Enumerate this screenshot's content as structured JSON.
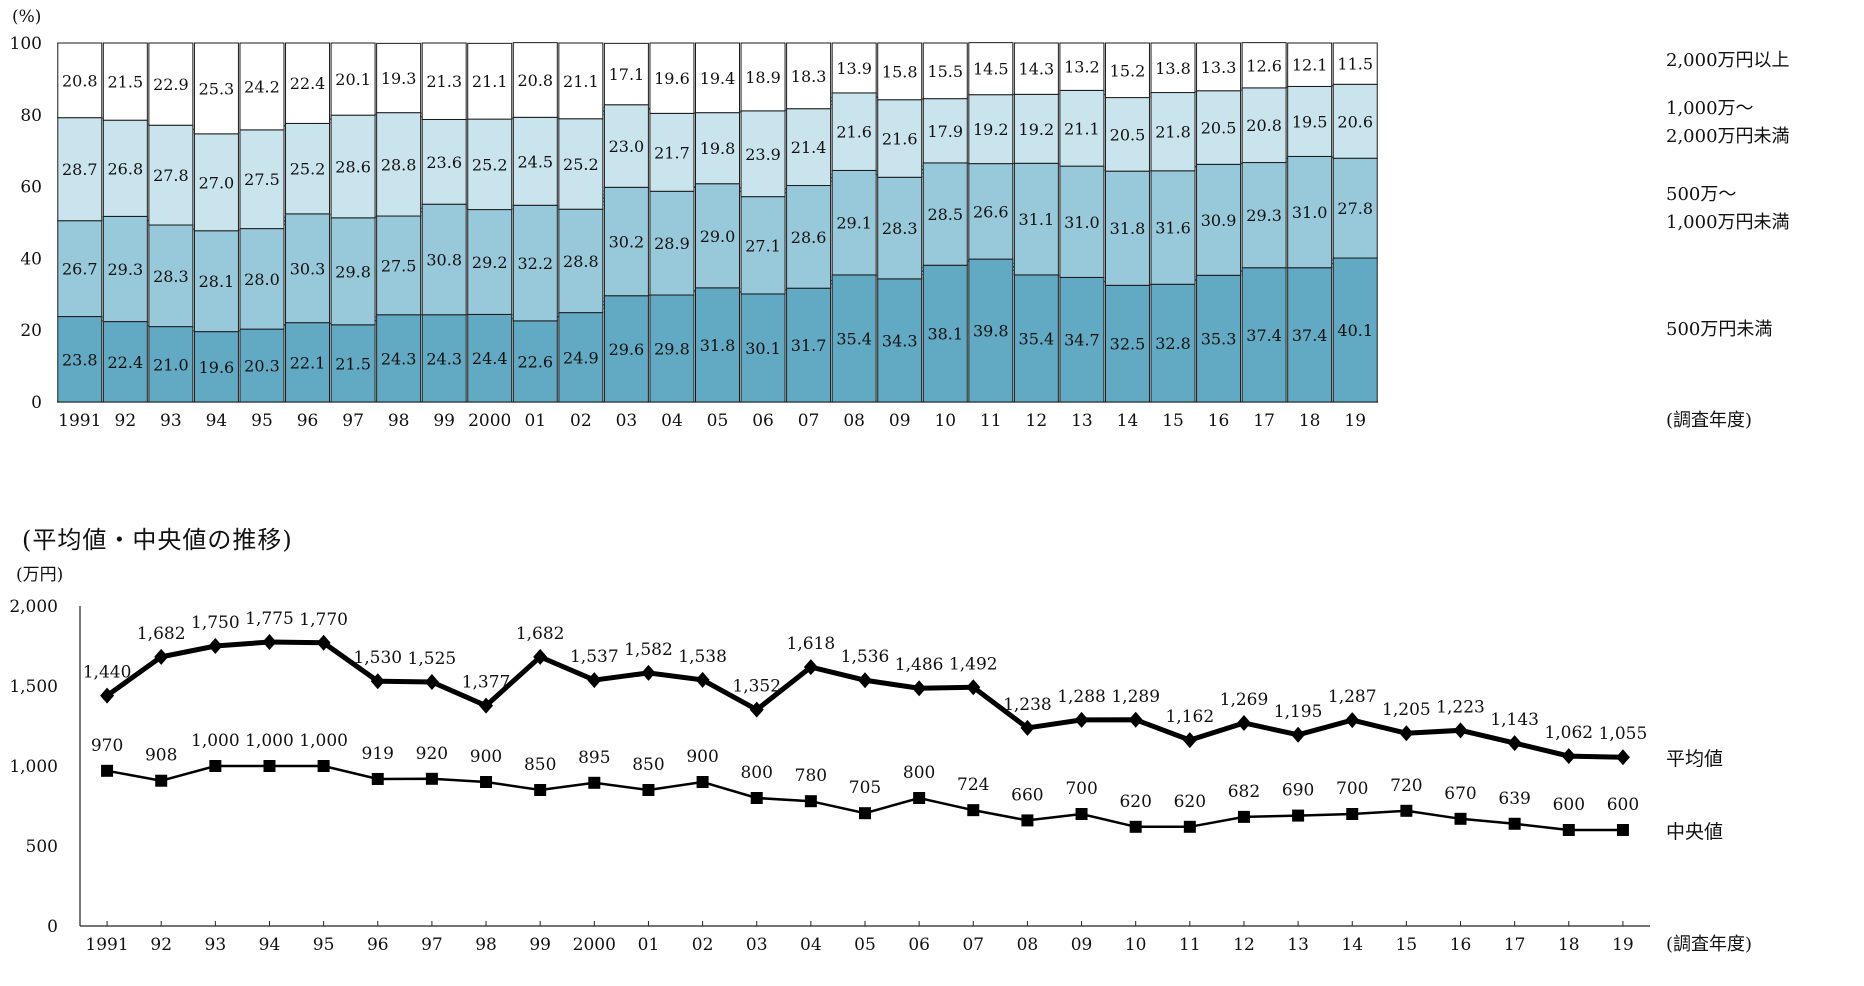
{
  "chart_data": [
    {
      "type": "bar",
      "stacked": true,
      "ylabel": "(%)",
      "xlabel": "(調査年度)",
      "ylim": [
        0,
        100
      ],
      "yticks": [
        0,
        20,
        40,
        60,
        80,
        100
      ],
      "categories": [
        "1991",
        "92",
        "93",
        "94",
        "95",
        "96",
        "97",
        "98",
        "99",
        "2000",
        "01",
        "02",
        "03",
        "04",
        "05",
        "06",
        "07",
        "08",
        "09",
        "10",
        "11",
        "12",
        "13",
        "14",
        "15",
        "16",
        "17",
        "18",
        "19"
      ],
      "series": [
        {
          "name": "500万円未満",
          "color": "#62a9c4",
          "values": [
            23.8,
            22.4,
            21.0,
            19.6,
            20.3,
            22.1,
            21.5,
            24.3,
            24.3,
            24.4,
            22.6,
            24.9,
            29.6,
            29.8,
            31.8,
            30.1,
            31.7,
            35.4,
            34.3,
            38.1,
            39.8,
            35.4,
            34.7,
            32.5,
            32.8,
            35.3,
            37.4,
            37.4,
            40.1
          ]
        },
        {
          "name": "500万～|1,000万円未満",
          "color": "#98c9da",
          "values": [
            26.7,
            29.3,
            28.3,
            28.1,
            28.0,
            30.3,
            29.8,
            27.5,
            30.8,
            29.2,
            32.2,
            28.8,
            30.2,
            28.9,
            29.0,
            27.1,
            28.6,
            29.1,
            28.3,
            28.5,
            26.6,
            31.1,
            31.0,
            31.8,
            31.6,
            30.9,
            29.3,
            31.0,
            27.8
          ]
        },
        {
          "name": "1,000万～|2,000万円未満",
          "color": "#c9e4ed",
          "values": [
            28.7,
            26.8,
            27.8,
            27.0,
            27.5,
            25.2,
            28.6,
            28.8,
            23.6,
            25.2,
            24.5,
            25.2,
            23.0,
            21.7,
            19.8,
            23.9,
            21.4,
            21.6,
            21.6,
            17.9,
            19.2,
            19.2,
            21.1,
            20.5,
            21.8,
            20.5,
            20.8,
            19.5,
            20.6
          ]
        },
        {
          "name": "2,000万円以上",
          "color": "#ffffff",
          "values": [
            20.8,
            21.5,
            22.9,
            25.3,
            24.2,
            22.4,
            20.1,
            19.3,
            21.3,
            21.1,
            20.8,
            21.1,
            17.1,
            19.6,
            19.4,
            18.9,
            18.3,
            13.9,
            15.8,
            15.5,
            14.5,
            14.3,
            13.2,
            15.2,
            13.8,
            13.3,
            12.6,
            12.1,
            11.5
          ]
        }
      ]
    },
    {
      "type": "line",
      "title": "(平均値・中央値の推移)",
      "ylabel": "(万円)",
      "xlabel": "(調査年度)",
      "ylim": [
        0,
        2000
      ],
      "yticks": [
        "0",
        "500",
        "1,000",
        "1,500",
        "2,000"
      ],
      "categories": [
        "1991",
        "92",
        "93",
        "94",
        "95",
        "96",
        "97",
        "98",
        "99",
        "2000",
        "01",
        "02",
        "03",
        "04",
        "05",
        "06",
        "07",
        "08",
        "09",
        "10",
        "11",
        "12",
        "13",
        "14",
        "15",
        "16",
        "17",
        "18",
        "19"
      ],
      "series": [
        {
          "name": "平均値",
          "marker": "diamond",
          "values": [
            1440,
            1682,
            1750,
            1775,
            1770,
            1530,
            1525,
            1377,
            1682,
            1537,
            1582,
            1538,
            1352,
            1618,
            1536,
            1486,
            1492,
            1238,
            1288,
            1289,
            1162,
            1269,
            1195,
            1287,
            1205,
            1223,
            1143,
            1062,
            1055
          ]
        },
        {
          "name": "中央値",
          "marker": "square",
          "values": [
            970,
            908,
            1000,
            1000,
            1000,
            919,
            920,
            900,
            850,
            895,
            850,
            900,
            800,
            780,
            705,
            800,
            724,
            660,
            700,
            620,
            620,
            682,
            690,
            700,
            720,
            670,
            639,
            600,
            600
          ]
        }
      ]
    }
  ]
}
